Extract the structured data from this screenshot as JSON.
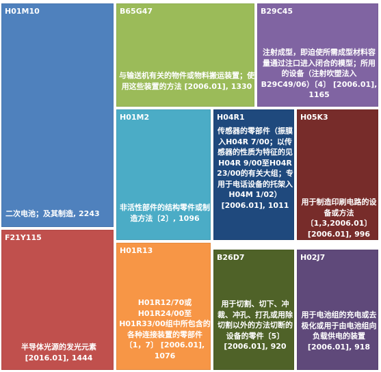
{
  "chart_data": {
    "type": "treemap",
    "items": [
      {
        "code": "H01M10",
        "desc": "二次电池；及其制造,",
        "value": 2243,
        "value_text": "2243",
        "color": "#4f81bd"
      },
      {
        "code": "B65G47",
        "desc": "与输送机有关的物件或物料搬运装置；使用这些装置的方法",
        "value": 1330,
        "value_text": "[2006.01], 1330",
        "color": "#9bbb59"
      },
      {
        "code": "B29C45",
        "desc": "注射成型，即迫使所需成型材料容量通过注口进入闭合的模型；所用的设备（注射吹塑法入B29C49/06）〔4〕",
        "value": 1165,
        "value_text": "[2006.01], 1165",
        "color": "#8064a2"
      },
      {
        "code": "H01M2",
        "desc": "非活性部件的结构零件或制造方法〔2〕,",
        "value": 1096,
        "value_text": "1096",
        "color": "#4bacc6"
      },
      {
        "code": "H04R1",
        "desc": "传感器的零部件（振膜入H04R 7/00；以传感器的性质为特征的见H04R 9/00至H04R 23/00的有关大组；专用于电话设备的托架入H04M 1/02）[2006.01],",
        "value": 1011,
        "value_text": "1011",
        "color": "#1f497d"
      },
      {
        "code": "H05K3",
        "desc": "用于制造印刷电路的设备或方法〔1,3,2006.01〕",
        "value": 996,
        "value_text": "[2006.01], 996",
        "color": "#772c2a"
      },
      {
        "code": "F21Y115",
        "desc": "半导体光源的发光元素",
        "value": 1444,
        "value_text": "[2016.01], 1444",
        "color": "#c0504d"
      },
      {
        "code": "H01R13",
        "desc": "H01R12/70或H01R24/00至H01R33/00组中所包含的各种连接装置的零部件〔1，7〕",
        "value": 1076,
        "value_text": "[2006.01], 1076",
        "color": "#f79646"
      },
      {
        "code": "B26D7",
        "desc": "用于切割、切下、冲裁、冲孔、打孔或用除切割以外的方法切断的设备的零件〔5〕",
        "value": 920,
        "value_text": "[2006.01], 920",
        "color": "#4f6228"
      },
      {
        "code": "H02J7",
        "desc": "用于电池组的充电或去极化或用于由电池组向负载供电的装置",
        "value": 918,
        "value_text": "[2006.01], 918",
        "color": "#5f497a"
      }
    ]
  }
}
